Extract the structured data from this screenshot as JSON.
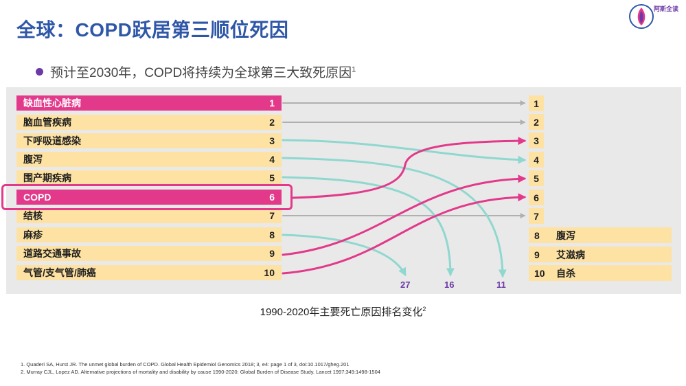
{
  "title": "全球：COPD跃居第三顺位死因",
  "logo_text": "阿斯全读",
  "bullet": {
    "text": "预计至2030年，COPD将持续为全球第三大致死原因",
    "sup": "1"
  },
  "left_rows": [
    {
      "name": "缺血性心脏病",
      "rank": "1"
    },
    {
      "name": "脑血管疾病",
      "rank": "2"
    },
    {
      "name": "下呼吸道感染",
      "rank": "3"
    },
    {
      "name": "腹泻",
      "rank": "4"
    },
    {
      "name": "围产期疾病",
      "rank": "5"
    },
    {
      "name": "COPD",
      "rank": "6"
    },
    {
      "name": "结核",
      "rank": "7"
    },
    {
      "name": "麻疹",
      "rank": "8"
    },
    {
      "name": "道路交通事故",
      "rank": "9"
    },
    {
      "name": "气管/支气管/肺癌",
      "rank": "10"
    }
  ],
  "right_rows": [
    {
      "rank": "1"
    },
    {
      "rank": "2"
    },
    {
      "rank": "3"
    },
    {
      "rank": "4"
    },
    {
      "rank": "5"
    },
    {
      "rank": "6"
    },
    {
      "rank": "7"
    },
    {
      "rank": "8",
      "name": "腹泻"
    },
    {
      "rank": "9",
      "name": "艾滋病"
    },
    {
      "rank": "10",
      "name": "自杀"
    }
  ],
  "drop_ranks": [
    "27",
    "16",
    "11"
  ],
  "caption": {
    "text": "1990-2020年主要死亡原因排名变化",
    "sup": "2"
  },
  "references": [
    "1. Quaderi SA, Hurst JR. The unmet global burden of COPD. Global Health Epidemiol Genomics 2018; 3, e4: page 1 of 3, doi:10.1017/gheg.201",
    "2. Murray CJL, Lopez AD. Alternative projections of mortality and disability by cause 1990-2020: Global Burden of Disease Study. Lancet 1997;349:1498-1504"
  ],
  "colors": {
    "title": "#2f57a8",
    "pink": "#e2398a",
    "row": "#fde2a3",
    "teal": "#8fd8cf",
    "gray_arrow": "#b0b0b0",
    "drop_number": "#6b3aa6"
  }
}
